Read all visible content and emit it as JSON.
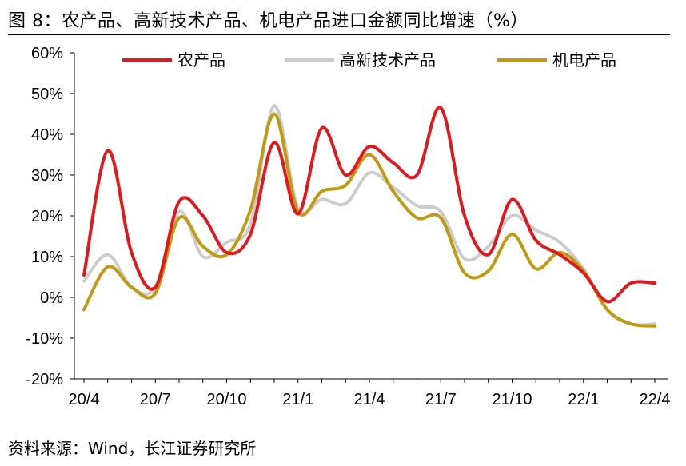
{
  "header": {
    "title": "图 8：农产品、高新技术产品、机电产品进口金额同比增速（%）"
  },
  "footer": {
    "source": "资料来源：Wind，长江证券研究所"
  },
  "colors": {
    "agri": "#e0191e",
    "hightech": "#cccccc",
    "mech": "#bf9a12"
  },
  "chart_data": {
    "type": "line",
    "title": "图 8：农产品、高新技术产品、机电产品进口金额同比增速（%）",
    "xlabel": "",
    "ylabel": "",
    "ylim": [
      -20,
      60
    ],
    "yticks": [
      -20,
      -10,
      0,
      10,
      20,
      30,
      40,
      50,
      60
    ],
    "ytick_labels": [
      "-20%",
      "-10%",
      "0%",
      "10%",
      "20%",
      "30%",
      "40%",
      "50%",
      "60%"
    ],
    "x": [
      "20/4",
      "20/5",
      "20/6",
      "20/7",
      "20/8",
      "20/9",
      "20/10",
      "20/11",
      "20/12",
      "21/1",
      "21/2",
      "21/3",
      "21/4",
      "21/5",
      "21/6",
      "21/7",
      "21/8",
      "21/9",
      "21/10",
      "21/11",
      "21/12",
      "22/1",
      "22/2",
      "22/3",
      "22/4"
    ],
    "xtick_labels": [
      "20/4",
      "20/7",
      "20/10",
      "21/1",
      "21/4",
      "21/7",
      "21/10",
      "22/1",
      "22/4"
    ],
    "legend": "top",
    "grid": false,
    "series": [
      {
        "name": "农产品",
        "color": "#e0191e",
        "values": [
          5.5,
          36,
          11,
          2.5,
          23.5,
          20,
          11,
          15.5,
          38,
          20.5,
          41.5,
          30,
          37,
          33,
          30,
          46.5,
          20,
          10.5,
          24,
          14,
          10.5,
          6,
          -1,
          3.5,
          3.5
        ]
      },
      {
        "name": "高新技术产品",
        "color": "#cccccc",
        "values": [
          4,
          10.5,
          2.5,
          2.5,
          21,
          10,
          13.5,
          18,
          47,
          22,
          24,
          23,
          30.5,
          27,
          22.5,
          21,
          9.5,
          12.5,
          20,
          16.5,
          13.5,
          7,
          -3,
          -6.5,
          -6.5
        ]
      },
      {
        "name": "机电产品",
        "color": "#bf9a12",
        "values": [
          -3,
          7.5,
          2.5,
          1,
          19.5,
          12.5,
          10.5,
          21.5,
          45,
          21,
          26,
          27.5,
          35,
          26,
          19.5,
          19.5,
          6,
          6.5,
          15.5,
          7,
          11,
          6.5,
          -3,
          -6.5,
          -7
        ]
      }
    ]
  }
}
